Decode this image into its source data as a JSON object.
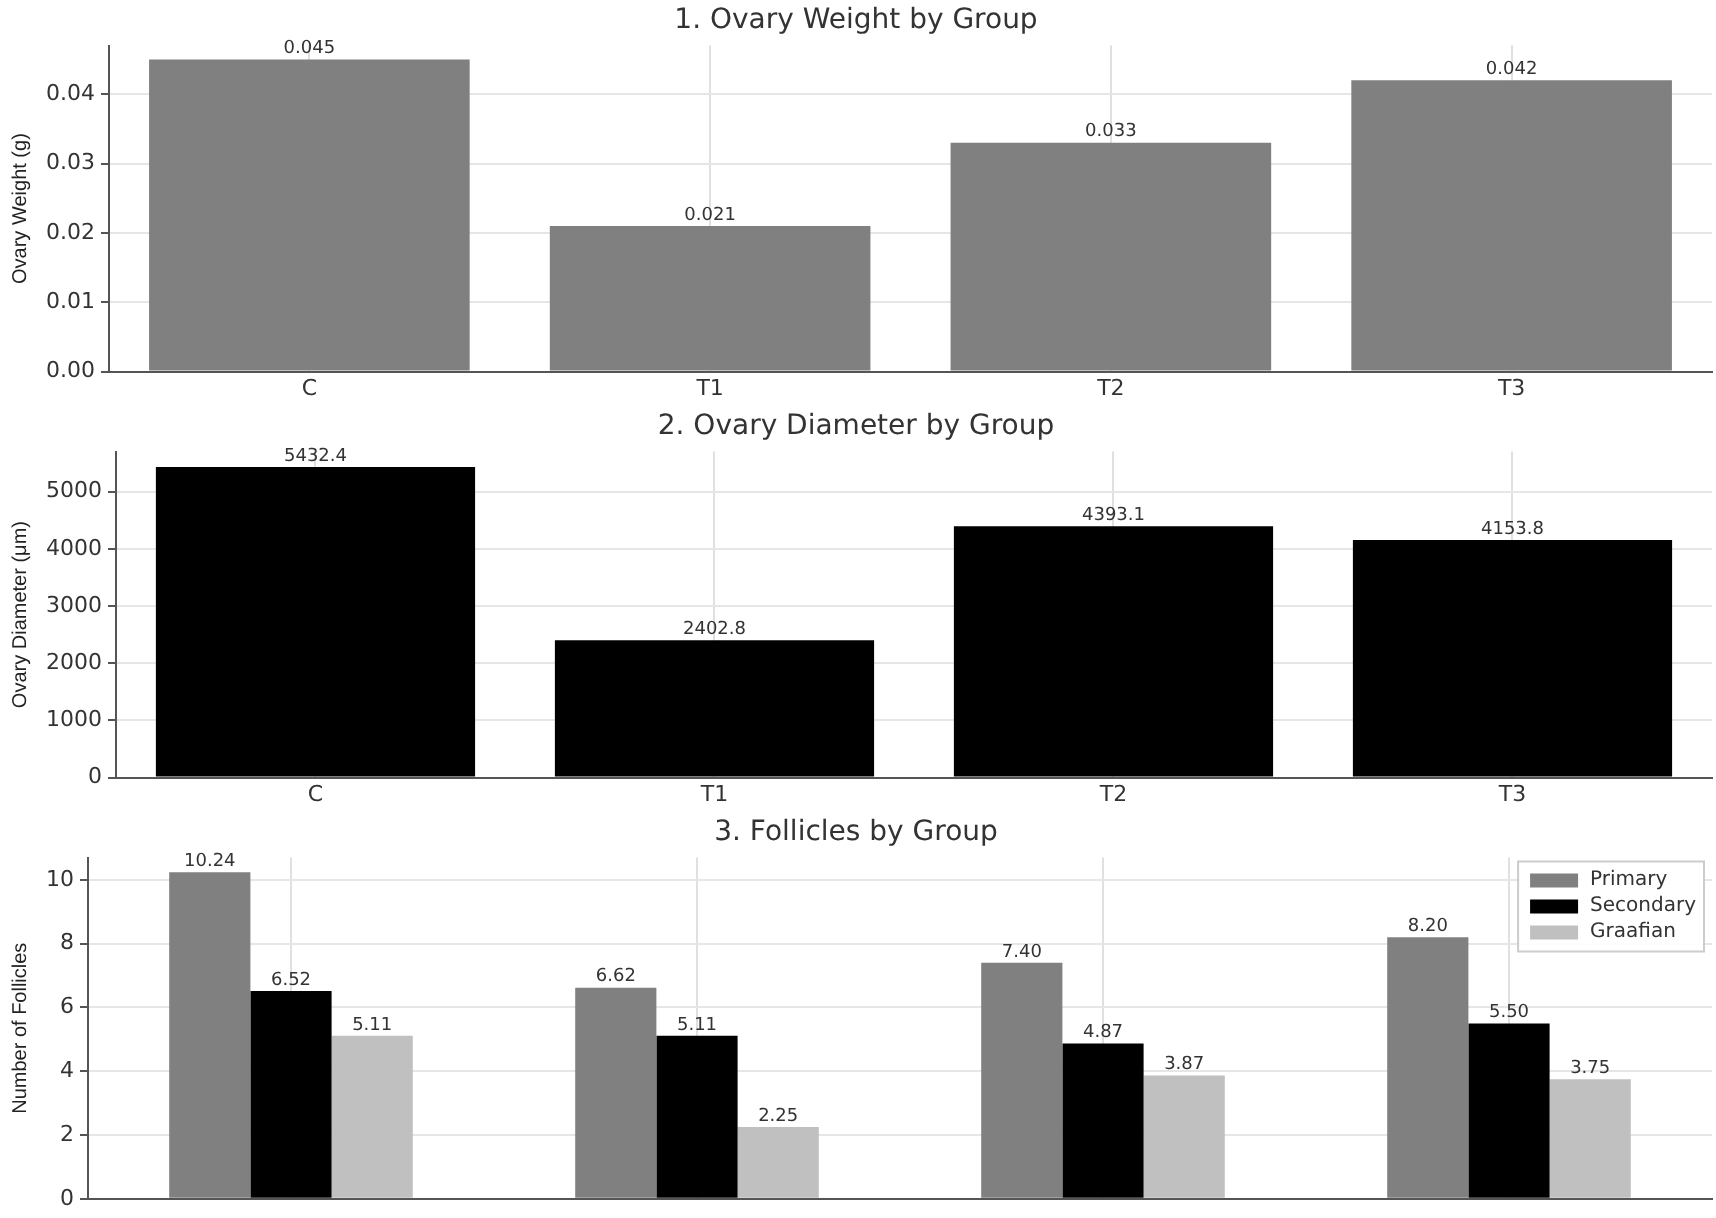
{
  "chart_data": [
    {
      "type": "bar",
      "title": "1. Ovary Weight by Group",
      "ylabel": "Ovary Weight (g)",
      "categories": [
        "C",
        "T1",
        "T2",
        "T3"
      ],
      "values": [
        0.045,
        0.021,
        0.033,
        0.042
      ],
      "color": "#808080",
      "ylim": [
        0,
        0.047
      ],
      "yticks": [
        {
          "value": 0,
          "label": "0.00"
        },
        {
          "value": 0.01,
          "label": "0.01"
        },
        {
          "value": 0.02,
          "label": "0.02"
        },
        {
          "value": 0.03,
          "label": "0.03"
        },
        {
          "value": 0.04,
          "label": "0.04"
        }
      ],
      "grid": true,
      "data_labels": true
    },
    {
      "type": "bar",
      "title": "2. Ovary Diameter by Group",
      "ylabel": "Ovary Diameter (μm)",
      "categories": [
        "C",
        "T1",
        "T2",
        "T3"
      ],
      "values": [
        5432.4,
        2402.8,
        4393.1,
        4153.8
      ],
      "color": "#000000",
      "ylim": [
        0,
        5700
      ],
      "yticks": [
        0,
        1000,
        2000,
        3000,
        4000,
        5000
      ],
      "grid": true,
      "data_labels": true
    },
    {
      "type": "bar",
      "title": "3. Follicles by Group",
      "ylabel": "Number of Follicles",
      "categories": [
        null,
        null,
        null,
        null
      ],
      "series": [
        {
          "name": "Primary",
          "color": "#808080",
          "values": [
            10.24,
            6.62,
            7.4,
            8.2
          ],
          "value_labels": [
            "10.24",
            "6.62",
            "7.40",
            "8.20"
          ]
        },
        {
          "name": "Secondary",
          "color": "#000000",
          "values": [
            6.52,
            5.11,
            4.87,
            5.5
          ],
          "value_labels": [
            "6.52",
            "5.11",
            "4.87",
            "5.50"
          ]
        },
        {
          "name": "Graafian",
          "color": "#c0c0c0",
          "values": [
            5.11,
            2.25,
            3.87,
            3.75
          ],
          "value_labels": [
            "5.11",
            "2.25",
            "3.87",
            "3.75"
          ]
        }
      ],
      "ylim": [
        0,
        10.7
      ],
      "yticks": [
        0,
        2,
        4,
        6,
        8,
        10
      ],
      "grid": true,
      "legend": "top right",
      "tick_labels": "y"
    }
  ]
}
